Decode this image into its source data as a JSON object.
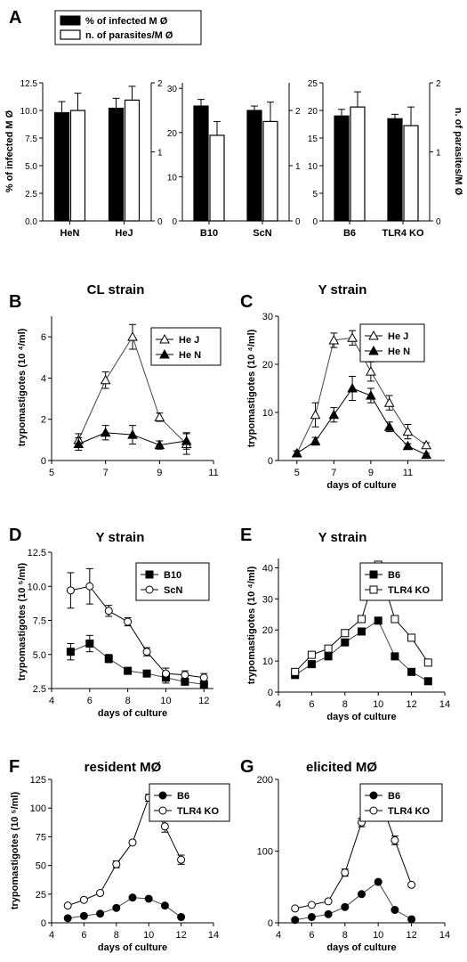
{
  "figure": {
    "panels": [
      {
        "letter": "A"
      },
      {
        "letter": "B",
        "title": "CL strain"
      },
      {
        "letter": "C",
        "title": "Y strain"
      },
      {
        "letter": "D",
        "title": "Y strain"
      },
      {
        "letter": "E",
        "title": "Y strain"
      },
      {
        "letter": "F",
        "title": "resident MØ"
      },
      {
        "letter": "G",
        "title": "elicited MØ"
      }
    ],
    "legend_a": [
      "% of infected M Ø",
      "n. of parasites/M Ø"
    ],
    "ylabel_a_left": "% of infected M Ø",
    "ylabel_a_right": "n. of parasites/M Ø"
  },
  "chart_data": [
    {
      "id": "A1",
      "type": "bar",
      "categories": [
        "HeN",
        "HeJ"
      ],
      "series": [
        {
          "name": "% of infected M Ø",
          "values": [
            9.8,
            10.2
          ],
          "errors": [
            1.0,
            0.9
          ],
          "axis": "left"
        },
        {
          "name": "n. of parasites/M Ø",
          "values": [
            1.6,
            1.75
          ],
          "errors": [
            0.25,
            0.2
          ],
          "axis": "right"
        }
      ],
      "ylim": [
        0,
        12.5
      ],
      "yticks": [
        0.0,
        2.5,
        5.0,
        7.5,
        10.0,
        12.5
      ],
      "yticklabels": [
        "0.0",
        "2.5",
        "5.0",
        "7.5",
        "10.0",
        "12.5"
      ],
      "ylim_right": [
        0,
        2
      ],
      "yticks_right": [
        0,
        1,
        2
      ]
    },
    {
      "id": "A2",
      "type": "bar",
      "categories": [
        "B10",
        "ScN"
      ],
      "series": [
        {
          "name": "% of infected M Ø",
          "values": [
            26,
            25
          ],
          "errors": [
            1.5,
            1.0
          ],
          "axis": "left"
        },
        {
          "name": "n. of parasites/M Ø",
          "values": [
            1.55,
            1.8
          ],
          "errors": [
            0.25,
            0.35
          ],
          "axis": "right"
        }
      ],
      "ylim": [
        0,
        31.25
      ],
      "yticks": [
        0,
        10,
        20,
        30
      ],
      "ylim_right": [
        0,
        2.5
      ],
      "yticks_right": [
        0,
        1,
        2
      ]
    },
    {
      "id": "A3",
      "type": "bar",
      "categories": [
        "B6",
        "TLR4 KO"
      ],
      "series": [
        {
          "name": "% of infected M Ø",
          "values": [
            19,
            18.5
          ],
          "errors": [
            1.2,
            0.8
          ],
          "axis": "left"
        },
        {
          "name": "n. of parasites/M Ø",
          "values": [
            1.65,
            1.38
          ],
          "errors": [
            0.22,
            0.27
          ],
          "axis": "right"
        }
      ],
      "ylim": [
        0,
        25
      ],
      "yticks": [
        0,
        5,
        10,
        15,
        20,
        25
      ],
      "ylim_right": [
        0,
        2
      ],
      "yticks_right": [
        0,
        1,
        2
      ],
      "ylabel_right": "n. of parasites/M Ø"
    },
    {
      "id": "B",
      "type": "line",
      "title": "CL strain",
      "xlabel": "",
      "ylabel": "trypomastigotes (10 ⁴/ml)",
      "xlim": [
        5,
        11
      ],
      "xticks": [
        5,
        7,
        9,
        11
      ],
      "ylim": [
        0,
        7
      ],
      "yticks": [
        0,
        2,
        4,
        6
      ],
      "legend": "top-right",
      "series": [
        {
          "name": "He J",
          "marker": "triangle-open",
          "x": [
            6,
            7,
            8,
            9,
            10
          ],
          "y": [
            1.0,
            3.9,
            6.0,
            2.1,
            0.8
          ],
          "err": [
            0.3,
            0.4,
            0.6,
            0.2,
            0.5
          ]
        },
        {
          "name": "He N",
          "marker": "triangle-filled",
          "x": [
            6,
            7,
            8,
            9,
            10
          ],
          "y": [
            0.8,
            1.35,
            1.25,
            0.75,
            0.95
          ],
          "err": [
            0.3,
            0.35,
            0.45,
            0.2,
            0.4
          ]
        }
      ]
    },
    {
      "id": "C",
      "type": "line",
      "title": "Y strain",
      "xlabel": "days of culture",
      "ylabel": "trypomastigotes (10 ⁴/ml)",
      "xlim": [
        4,
        13
      ],
      "xticks": [
        5,
        7,
        9,
        11
      ],
      "ylim": [
        0,
        30
      ],
      "yticks": [
        0,
        10,
        20,
        30
      ],
      "legend": "top-right",
      "series": [
        {
          "name": "He J",
          "marker": "triangle-open",
          "x": [
            5,
            6,
            7,
            8,
            9,
            10,
            11,
            12
          ],
          "y": [
            1.5,
            9.5,
            25,
            25.5,
            18.5,
            12,
            6,
            3.2
          ],
          "err": [
            0.5,
            2.5,
            1.5,
            1.5,
            2,
            1.5,
            1.5,
            0.5
          ]
        },
        {
          "name": "He N",
          "marker": "triangle-filled",
          "x": [
            5,
            6,
            7,
            8,
            9,
            10,
            11,
            12
          ],
          "y": [
            1.5,
            4,
            9.5,
            15,
            13.5,
            7,
            3,
            1.2
          ],
          "err": [
            0.5,
            0.8,
            1.5,
            2.5,
            1.5,
            1,
            0.5,
            0.3
          ]
        }
      ]
    },
    {
      "id": "D",
      "type": "line",
      "title": "Y strain",
      "xlabel": "days of culture",
      "ylabel": "trypomastigotes (10 ⁵/ml)",
      "xlim": [
        4,
        12.5
      ],
      "xticks": [
        4,
        6,
        8,
        10,
        12
      ],
      "ylim": [
        2.5,
        12.5
      ],
      "yticks": [
        2.5,
        5.0,
        7.5,
        10.0,
        12.5
      ],
      "yticklabels": [
        "2.5",
        "5.0",
        "7.5",
        "10.0",
        "12.5"
      ],
      "legend": "top-right",
      "series": [
        {
          "name": "B10",
          "marker": "square-filled",
          "x": [
            5,
            6,
            7,
            8,
            9,
            10,
            11,
            12
          ],
          "y": [
            5.2,
            5.8,
            4.7,
            3.8,
            3.6,
            3.3,
            3.0,
            2.8
          ],
          "err": [
            0.6,
            0.6,
            0.3,
            0.2,
            0.2,
            0.4,
            0.2,
            0.2
          ]
        },
        {
          "name": "ScN",
          "marker": "circle-open",
          "x": [
            5,
            6,
            7,
            8,
            9,
            10,
            11,
            12
          ],
          "y": [
            9.7,
            10.0,
            8.2,
            7.4,
            5.2,
            3.6,
            3.5,
            3.3
          ],
          "err": [
            1.3,
            1.3,
            0.4,
            0.3,
            0.3,
            0.4,
            0.3,
            0.3
          ]
        }
      ]
    },
    {
      "id": "E",
      "type": "line",
      "title": "Y strain",
      "xlabel": "days of culture",
      "ylabel": "trypomastigotes (10 ⁴/ml)",
      "xlim": [
        4,
        14
      ],
      "xticks": [
        4,
        6,
        8,
        10,
        12,
        14
      ],
      "ylim": [
        0,
        43
      ],
      "yticks": [
        0,
        10,
        20,
        30,
        40
      ],
      "legend": "top-right",
      "series": [
        {
          "name": "B6",
          "marker": "square-filled",
          "x": [
            5,
            6,
            7,
            8,
            9,
            10,
            11,
            12,
            13
          ],
          "y": [
            5.5,
            9,
            11.5,
            16,
            19.5,
            23,
            11.5,
            6.5,
            3.5
          ]
        },
        {
          "name": "TLR4 KO",
          "marker": "square-open",
          "x": [
            5,
            6,
            7,
            8,
            9,
            10,
            11,
            12,
            13
          ],
          "y": [
            6.5,
            12,
            14,
            19,
            23.5,
            41,
            23.5,
            17.5,
            9.5
          ]
        }
      ]
    },
    {
      "id": "F",
      "type": "line",
      "title": "resident MØ",
      "xlabel": "days of culture",
      "ylabel": "trypomastigotes (10 ⁵/ml)",
      "xlim": [
        4,
        14
      ],
      "xticks": [
        4,
        6,
        8,
        10,
        12,
        14
      ],
      "ylim": [
        0,
        125
      ],
      "yticks": [
        0,
        25,
        50,
        75,
        100,
        125
      ],
      "legend": "top-right",
      "series": [
        {
          "name": "B6",
          "marker": "circle-filled",
          "x": [
            5,
            6,
            7,
            8,
            9,
            10,
            11,
            12
          ],
          "y": [
            4,
            6,
            8,
            13,
            22,
            21,
            15,
            5
          ]
        },
        {
          "name": "TLR4 KO",
          "marker": "circle-open",
          "x": [
            5,
            6,
            7,
            8,
            9,
            10,
            11,
            12
          ],
          "y": [
            15,
            20,
            26,
            51,
            70,
            109,
            84,
            55
          ],
          "err": [
            0,
            0,
            0,
            3,
            0,
            3,
            5,
            4
          ]
        }
      ]
    },
    {
      "id": "G",
      "type": "line",
      "title": "elicited MØ",
      "xlabel": "days of culture",
      "ylabel": "",
      "xlim": [
        4,
        14
      ],
      "xticks": [
        4,
        6,
        8,
        10,
        12,
        14
      ],
      "ylim": [
        0,
        200
      ],
      "yticks": [
        0,
        100,
        200
      ],
      "legend": "top-right",
      "series": [
        {
          "name": "B6",
          "marker": "circle-filled",
          "x": [
            5,
            6,
            7,
            8,
            9,
            10,
            11,
            12
          ],
          "y": [
            4,
            8,
            12,
            22,
            40,
            57,
            18,
            5
          ]
        },
        {
          "name": "TLR4 KO",
          "marker": "circle-open",
          "x": [
            5,
            6,
            7,
            8,
            9,
            10,
            11,
            12
          ],
          "y": [
            20,
            25,
            30,
            70,
            140,
            179,
            115,
            53
          ],
          "err": [
            0,
            0,
            0,
            5,
            6,
            0,
            6,
            0
          ]
        }
      ]
    }
  ]
}
